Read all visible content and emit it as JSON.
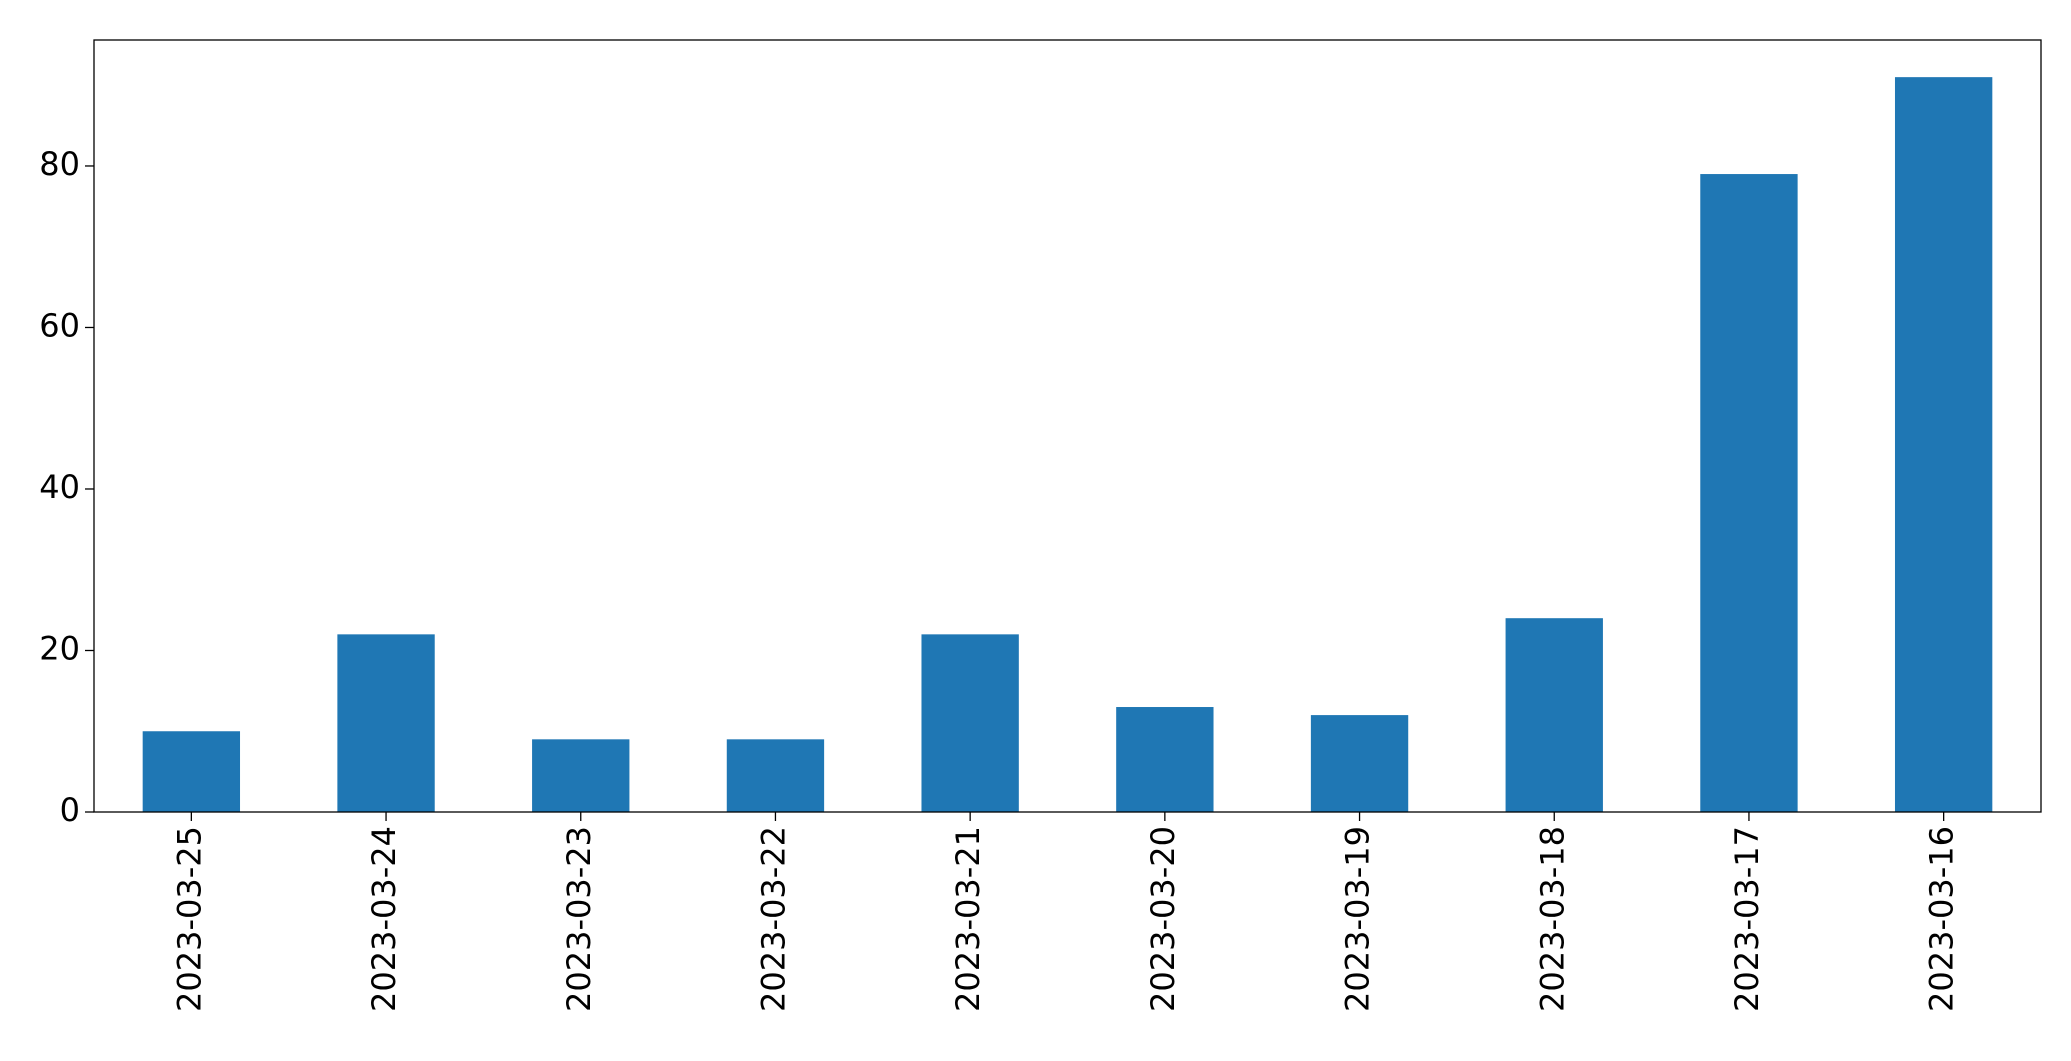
{
  "chart_data": {
    "type": "bar",
    "categories": [
      "2023-03-25",
      "2023-03-24",
      "2023-03-23",
      "2023-03-22",
      "2023-03-21",
      "2023-03-20",
      "2023-03-19",
      "2023-03-18",
      "2023-03-17",
      "2023-03-16"
    ],
    "values": [
      10,
      22,
      9,
      9,
      22,
      13,
      12,
      24,
      79,
      91
    ],
    "color": "#1f77b4",
    "ylim": [
      0,
      95.6
    ],
    "yticks": [
      0,
      20,
      40,
      60,
      80
    ],
    "grid": false
  }
}
